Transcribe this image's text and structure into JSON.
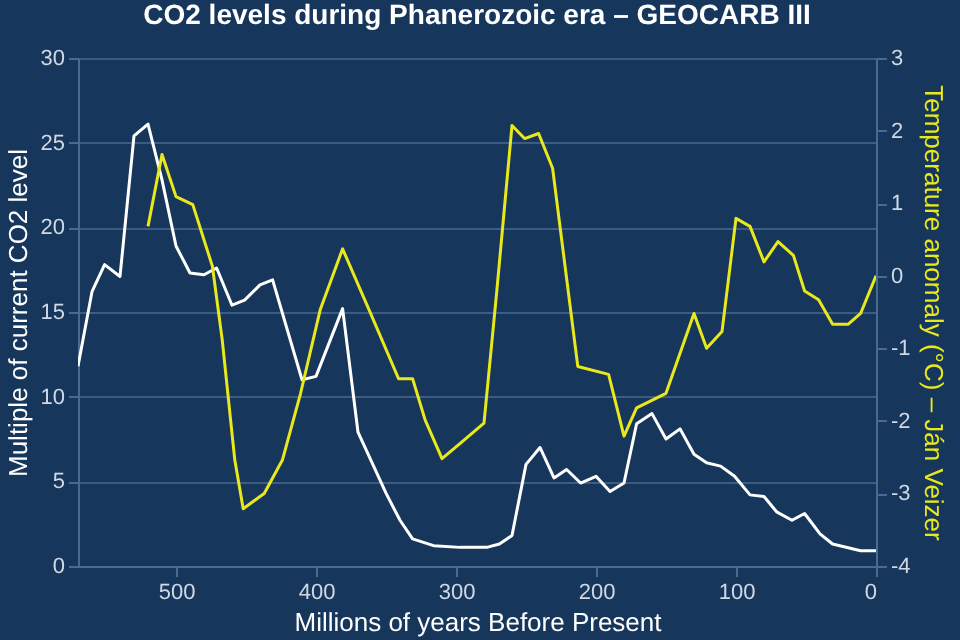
{
  "chart_data": {
    "type": "line",
    "title": "CO2 levels during Phanerozoic era – GEOCARB III",
    "xlabel": "Millions of years Before Present",
    "ylabel": "Multiple of current CO2 level",
    "y2label": "Temperature anomaly (°C) – Ján Veizer",
    "xlim": [
      570,
      0
    ],
    "xticks": [
      500,
      400,
      300,
      200,
      100,
      0
    ],
    "ylim": [
      0,
      30
    ],
    "yticks": [
      0,
      5,
      10,
      15,
      20,
      25,
      30
    ],
    "y2lim": [
      -4,
      3
    ],
    "y2ticks": [
      -4,
      -3,
      -2,
      -1,
      0,
      1,
      2,
      3
    ],
    "grid": "y",
    "series": [
      {
        "color": "#ffffff",
        "x": [
          570,
          560,
          551,
          540,
          530,
          520,
          510,
          500,
          490,
          480,
          471,
          460,
          451,
          440,
          431,
          410,
          400,
          381,
          370,
          350,
          340,
          331,
          316,
          297,
          278,
          269,
          260,
          250,
          240,
          230,
          221,
          211,
          200,
          190,
          180,
          171,
          160,
          150,
          140,
          130,
          121,
          111,
          101,
          90,
          80,
          71,
          60,
          51,
          40,
          31,
          11,
          0
        ],
        "values": [
          11.8,
          16.2,
          17.8,
          17.1,
          25.4,
          26.1,
          22.8,
          18.9,
          17.3,
          17.2,
          17.6,
          15.4,
          15.7,
          16.6,
          16.9,
          11.0,
          11.2,
          15.2,
          7.9,
          4.3,
          2.7,
          1.6,
          1.2,
          1.1,
          1.1,
          1.3,
          1.8,
          6.0,
          7.0,
          5.2,
          5.7,
          4.9,
          5.3,
          4.4,
          4.9,
          8.4,
          9.0,
          7.5,
          8.1,
          6.6,
          6.1,
          5.9,
          5.3,
          4.2,
          4.1,
          3.2,
          2.7,
          3.1,
          1.9,
          1.3,
          0.9,
          0.9
        ]
      },
      {
        "color": "#e8e81c",
        "axis": "y2",
        "x": [
          520,
          510,
          500,
          488,
          474,
          467,
          458,
          452,
          437,
          424,
          411,
          397,
          381,
          361,
          341,
          331,
          322,
          310,
          297,
          280,
          271,
          260,
          251,
          241,
          231,
          213,
          191,
          180,
          171,
          150,
          130,
          121,
          110,
          100,
          90,
          80,
          70,
          59,
          51,
          41,
          31,
          20,
          11,
          0
        ],
        "values": [
          0.68,
          1.67,
          1.09,
          0.98,
          0.13,
          -0.88,
          -2.54,
          -3.21,
          -3.0,
          -2.54,
          -1.62,
          -0.47,
          0.37,
          -0.52,
          -1.42,
          -1.42,
          -1.99,
          -2.52,
          -2.31,
          -2.03,
          -0.24,
          2.07,
          1.89,
          1.96,
          1.48,
          -1.25,
          -1.36,
          -2.21,
          -1.82,
          -1.62,
          -0.52,
          -1.0,
          -0.77,
          0.79,
          0.68,
          0.19,
          0.47,
          0.28,
          -0.21,
          -0.33,
          -0.67,
          -0.67,
          -0.52,
          0.0
        ]
      }
    ]
  }
}
